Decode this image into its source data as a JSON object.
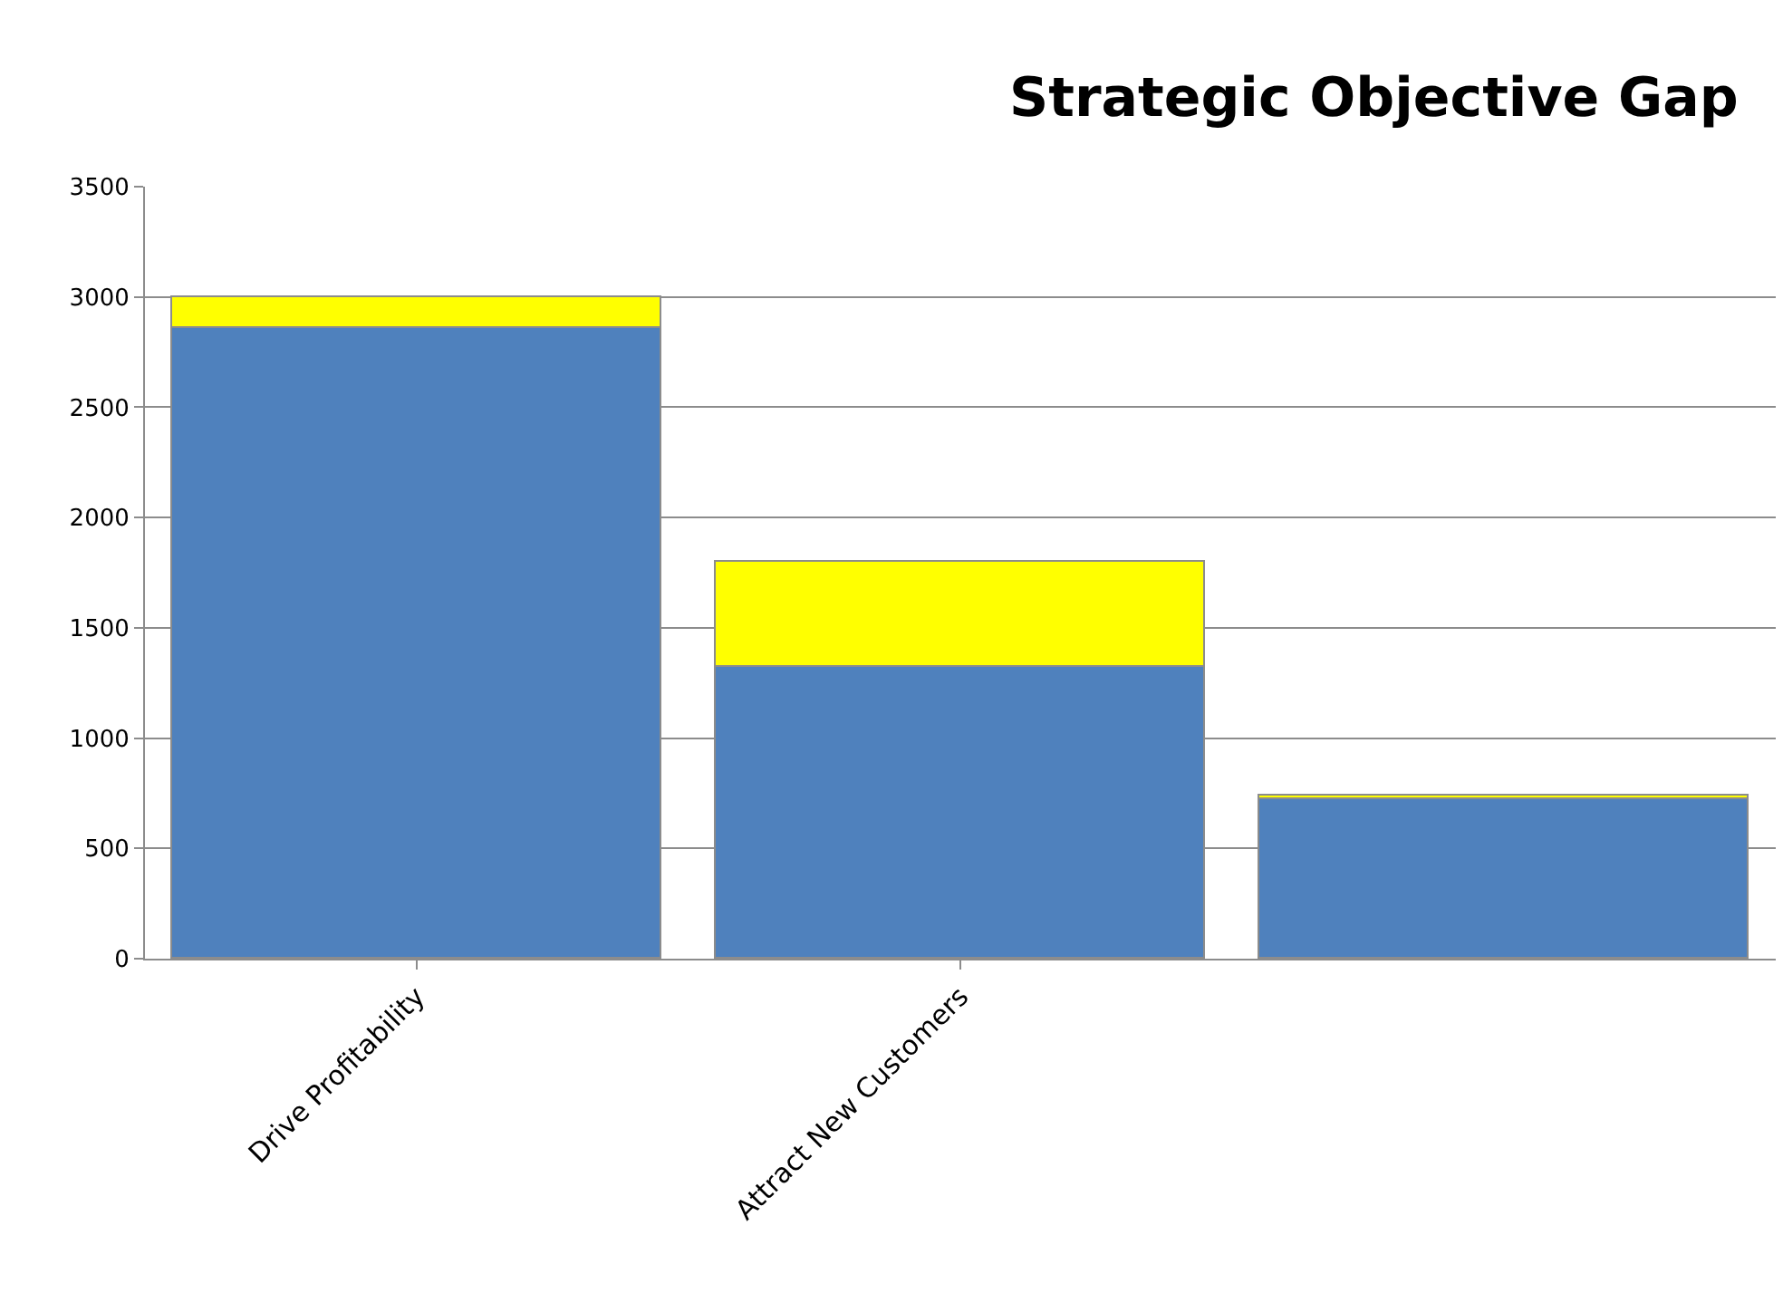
{
  "chart_data": {
    "type": "bar",
    "title": "Strategic Objective Gap",
    "stacked": true,
    "categories": [
      "Drive Profitability",
      "Attract New Customers",
      null
    ],
    "series": [
      {
        "color": "#4f81bd",
        "values": [
          2860,
          1320,
          720
        ]
      },
      {
        "color": "#ffff00",
        "values": [
          140,
          480,
          20
        ]
      }
    ],
    "ylim": [
      0,
      3500
    ],
    "yticks": [
      0,
      500,
      1000,
      1500,
      2000,
      2500,
      3000,
      3500
    ],
    "grid": "y"
  }
}
